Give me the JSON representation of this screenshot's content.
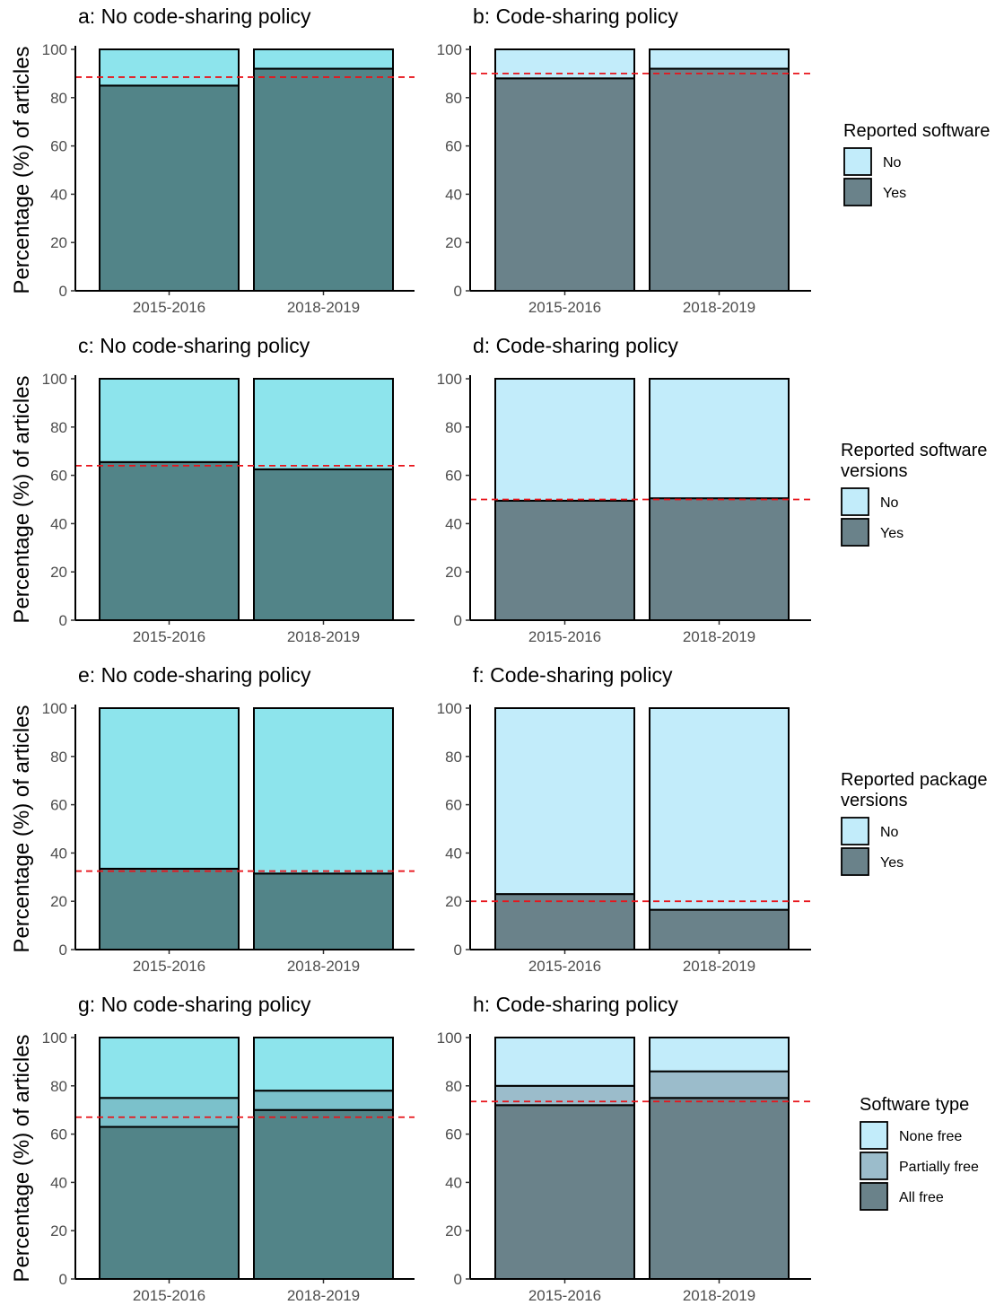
{
  "y_axis_label": "Percentage (%) of articles",
  "chart_data": [
    {
      "type": "bar",
      "stacked": true,
      "title": "a: No code-sharing policy",
      "ylabel": "Percentage (%) of articles",
      "ylim": [
        0,
        100
      ],
      "yticks": [
        0,
        20,
        40,
        60,
        80,
        100
      ],
      "categories": [
        "2015-2016",
        "2018-2019"
      ],
      "series": [
        {
          "name": "Yes",
          "values": [
            85,
            92
          ],
          "color": "#528488"
        },
        {
          "name": "No",
          "values": [
            15,
            8
          ],
          "color": "#8de4ec"
        }
      ],
      "reference_line": 88.5
    },
    {
      "type": "bar",
      "stacked": true,
      "title": "b: Code-sharing policy",
      "ylabel": "",
      "ylim": [
        0,
        100
      ],
      "yticks": [
        0,
        20,
        40,
        60,
        80,
        100
      ],
      "categories": [
        "2015-2016",
        "2018-2019"
      ],
      "series": [
        {
          "name": "Yes",
          "values": [
            88,
            92
          ],
          "color": "#6a828a"
        },
        {
          "name": "No",
          "values": [
            12,
            8
          ],
          "color": "#c2ecfa"
        }
      ],
      "reference_line": 90
    },
    {
      "type": "bar",
      "stacked": true,
      "title": "c: No code-sharing policy",
      "ylabel": "Percentage (%) of articles",
      "ylim": [
        0,
        100
      ],
      "yticks": [
        0,
        20,
        40,
        60,
        80,
        100
      ],
      "categories": [
        "2015-2016",
        "2018-2019"
      ],
      "series": [
        {
          "name": "Yes",
          "values": [
            65.5,
            62.5
          ],
          "color": "#528488"
        },
        {
          "name": "No",
          "values": [
            34.5,
            37.5
          ],
          "color": "#8de4ec"
        }
      ],
      "reference_line": 64
    },
    {
      "type": "bar",
      "stacked": true,
      "title": "d: Code-sharing policy",
      "ylabel": "",
      "ylim": [
        0,
        100
      ],
      "yticks": [
        0,
        20,
        40,
        60,
        80,
        100
      ],
      "categories": [
        "2015-2016",
        "2018-2019"
      ],
      "series": [
        {
          "name": "Yes",
          "values": [
            49.5,
            50.5
          ],
          "color": "#6a828a"
        },
        {
          "name": "No",
          "values": [
            50.5,
            49.5
          ],
          "color": "#c2ecfa"
        }
      ],
      "reference_line": 50
    },
    {
      "type": "bar",
      "stacked": true,
      "title": "e: No code-sharing policy",
      "ylabel": "Percentage (%) of articles",
      "ylim": [
        0,
        100
      ],
      "yticks": [
        0,
        20,
        40,
        60,
        80,
        100
      ],
      "categories": [
        "2015-2016",
        "2018-2019"
      ],
      "series": [
        {
          "name": "Yes",
          "values": [
            33.5,
            31.5
          ],
          "color": "#528488"
        },
        {
          "name": "No",
          "values": [
            66.5,
            68.5
          ],
          "color": "#8de4ec"
        }
      ],
      "reference_line": 32.5
    },
    {
      "type": "bar",
      "stacked": true,
      "title": "f: Code-sharing policy",
      "ylabel": "",
      "ylim": [
        0,
        100
      ],
      "yticks": [
        0,
        20,
        40,
        60,
        80,
        100
      ],
      "categories": [
        "2015-2016",
        "2018-2019"
      ],
      "series": [
        {
          "name": "Yes",
          "values": [
            23,
            16.5
          ],
          "color": "#6a828a"
        },
        {
          "name": "No",
          "values": [
            77,
            83.5
          ],
          "color": "#c2ecfa"
        }
      ],
      "reference_line": 20
    },
    {
      "type": "bar",
      "stacked": true,
      "title": "g: No code-sharing policy",
      "ylabel": "Percentage (%) of articles",
      "ylim": [
        0,
        100
      ],
      "yticks": [
        0,
        20,
        40,
        60,
        80,
        100
      ],
      "categories": [
        "2015-2016",
        "2018-2019"
      ],
      "series": [
        {
          "name": "All free",
          "values": [
            63,
            70
          ],
          "color": "#528488"
        },
        {
          "name": "Partially free",
          "values": [
            12,
            8
          ],
          "color": "#7bc1cb"
        },
        {
          "name": "None free",
          "values": [
            25,
            22
          ],
          "color": "#8de4ec"
        }
      ],
      "reference_line": 67
    },
    {
      "type": "bar",
      "stacked": true,
      "title": "h: Code-sharing policy",
      "ylabel": "",
      "ylim": [
        0,
        100
      ],
      "yticks": [
        0,
        20,
        40,
        60,
        80,
        100
      ],
      "categories": [
        "2015-2016",
        "2018-2019"
      ],
      "series": [
        {
          "name": "All free",
          "values": [
            72,
            75
          ],
          "color": "#6a828a"
        },
        {
          "name": "Partially free",
          "values": [
            8,
            11
          ],
          "color": "#9bbccb"
        },
        {
          "name": "None free",
          "values": [
            20,
            14
          ],
          "color": "#c2ecfa"
        }
      ],
      "reference_line": 73.5
    }
  ],
  "legends": [
    {
      "title_lines": [
        "Reported software"
      ],
      "items": [
        {
          "label": "No",
          "color": "#c2ecfa"
        },
        {
          "label": "Yes",
          "color": "#6a828a"
        }
      ]
    },
    {
      "title_lines": [
        "Reported software",
        "versions"
      ],
      "items": [
        {
          "label": "No",
          "color": "#c2ecfa"
        },
        {
          "label": "Yes",
          "color": "#6a828a"
        }
      ]
    },
    {
      "title_lines": [
        "Reported package",
        "versions"
      ],
      "items": [
        {
          "label": "No",
          "color": "#c2ecfa"
        },
        {
          "label": "Yes",
          "color": "#6a828a"
        }
      ]
    },
    {
      "title_lines": [
        "Software type"
      ],
      "items": [
        {
          "label": "None free",
          "color": "#c2ecfa"
        },
        {
          "label": "Partially free",
          "color": "#9bbccb"
        },
        {
          "label": "All free",
          "color": "#6a828a"
        }
      ]
    }
  ]
}
